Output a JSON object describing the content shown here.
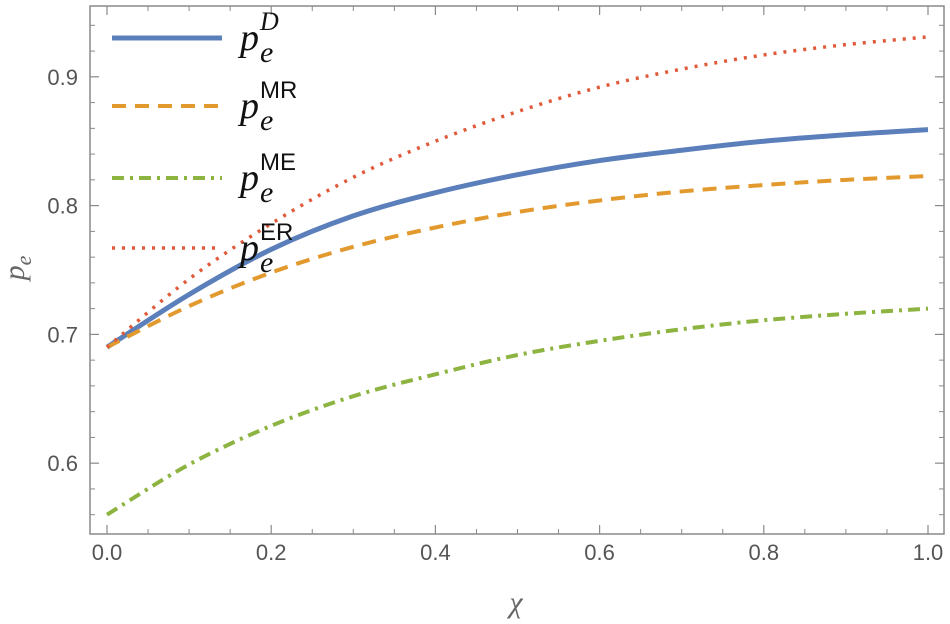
{
  "chart_data": {
    "type": "line",
    "title": "",
    "xlabel": "χ",
    "ylabel": "p_e",
    "ylabel_base": "p",
    "ylabel_sub": "e",
    "xlim": [
      0.0,
      1.0
    ],
    "ylim": [
      0.545,
      0.955
    ],
    "xticks": [
      0.0,
      0.2,
      0.4,
      0.6,
      0.8,
      1.0
    ],
    "xtick_labels": [
      "0.0",
      "0.2",
      "0.4",
      "0.6",
      "0.8",
      "1.0"
    ],
    "yticks": [
      0.6,
      0.7,
      0.8,
      0.9
    ],
    "ytick_labels": [
      "0.6",
      "0.7",
      "0.8",
      "0.9"
    ],
    "grid": false,
    "legend_position": "top-left",
    "x": [
      0.0,
      0.1,
      0.2,
      0.3,
      0.4,
      0.5,
      0.6,
      0.7,
      0.8,
      0.9,
      1.0
    ],
    "series": [
      {
        "name": "p_e^D",
        "legend_base": "p",
        "legend_sub": "e",
        "legend_sup": "D",
        "sup_italic": true,
        "color": "#5b7fba",
        "style": "solid",
        "values": [
          0.69,
          0.731,
          0.766,
          0.792,
          0.81,
          0.824,
          0.835,
          0.843,
          0.85,
          0.855,
          0.859
        ]
      },
      {
        "name": "p_e^MR",
        "legend_base": "p",
        "legend_sub": "e",
        "legend_sup": "MR",
        "sup_italic": false,
        "color": "#e29a2f",
        "style": "dashed",
        "values": [
          0.69,
          0.722,
          0.748,
          0.768,
          0.783,
          0.795,
          0.804,
          0.811,
          0.816,
          0.82,
          0.823
        ]
      },
      {
        "name": "p_e^ME",
        "legend_base": "p",
        "legend_sub": "e",
        "legend_sup": "ME",
        "sup_italic": false,
        "color": "#8db340",
        "style": "dashdot",
        "values": [
          0.56,
          0.599,
          0.629,
          0.652,
          0.669,
          0.684,
          0.695,
          0.704,
          0.711,
          0.716,
          0.72
        ]
      },
      {
        "name": "p_e^ER",
        "legend_base": "p",
        "legend_sub": "e",
        "legend_sup": "ER",
        "sup_italic": false,
        "color": "#e05a3a",
        "style": "dotted",
        "values": [
          0.69,
          0.743,
          0.786,
          0.822,
          0.85,
          0.873,
          0.892,
          0.906,
          0.917,
          0.925,
          0.931
        ]
      }
    ]
  }
}
